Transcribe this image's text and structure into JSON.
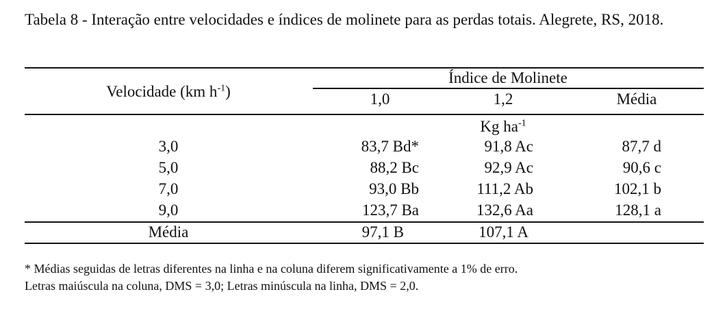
{
  "caption": "Tabela 8 - Interação entre velocidades e índices de molinete para as perdas totais. Alegrete, RS, 2018.",
  "header": {
    "velocity_label": "Velocidade (km h",
    "velocity_exp": "-1",
    "velocity_close": ")",
    "group_label": "Índice de Molinete",
    "col_1": "1,0",
    "col_2": "1,2",
    "col_mean": "Média"
  },
  "unit": {
    "base": "Kg ha",
    "exp": "-1"
  },
  "rows": [
    {
      "velocity": "3,0",
      "v1": "83,7 Bd*",
      "v2": "91,8 Ac",
      "mean": "87,7 d"
    },
    {
      "velocity": "5,0",
      "v1": "88,2 Bc",
      "v2": "92,9 Ac",
      "mean": "90,6 c"
    },
    {
      "velocity": "7,0",
      "v1": "93,0 Bb",
      "v2": "111,2 Ab",
      "mean": "102,1 b"
    },
    {
      "velocity": "9,0",
      "v1": "123,7 Ba",
      "v2": "132,6 Aa",
      "mean": "128,1 a"
    }
  ],
  "summary": {
    "label": "Média",
    "v1": "97,1 B",
    "v2": "107,1 A"
  },
  "footnotes": [
    "* Médias seguidas de letras diferentes na linha e na coluna diferem significativamente a 1% de erro.",
    "Letras maiúscula na coluna, DMS = 3,0; Letras minúscula na linha, DMS = 2,0."
  ]
}
